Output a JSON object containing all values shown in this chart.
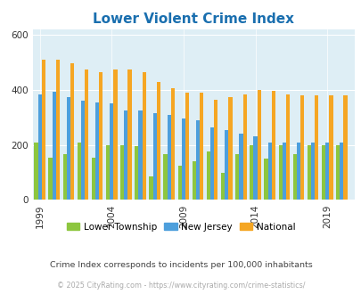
{
  "title": "Lower Violent Crime Index",
  "title_color": "#1a6faf",
  "years": [
    1999,
    2000,
    2001,
    2002,
    2003,
    2004,
    2005,
    2006,
    2007,
    2008,
    2009,
    2010,
    2011,
    2012,
    2013,
    2014,
    2015,
    2016,
    2017,
    2018,
    2019,
    2020
  ],
  "lt": [
    210,
    155,
    165,
    210,
    155,
    200,
    200,
    195,
    85,
    165,
    125,
    140,
    175,
    100,
    165,
    200,
    150,
    200,
    165,
    200,
    200,
    200
  ],
  "nj": [
    385,
    393,
    375,
    360,
    355,
    350,
    325,
    325,
    315,
    310,
    295,
    290,
    265,
    255,
    240,
    230,
    210,
    210,
    210,
    210,
    210,
    210
  ],
  "nat": [
    510,
    510,
    498,
    475,
    465,
    475,
    475,
    465,
    430,
    405,
    390,
    390,
    365,
    375,
    385,
    400,
    395,
    385,
    380,
    380,
    380,
    380
  ],
  "lower_color": "#8dc63f",
  "nj_color": "#4d9fdc",
  "national_color": "#f5a623",
  "bg_color": "#deeef5",
  "ylim": [
    0,
    620
  ],
  "yticks": [
    0,
    200,
    400,
    600
  ],
  "xtick_years": [
    1999,
    2004,
    2009,
    2014,
    2019
  ],
  "legend_labels": [
    "Lower Township",
    "New Jersey",
    "National"
  ],
  "note": "Crime Index corresponds to incidents per 100,000 inhabitants",
  "note_color": "#444444",
  "copyright": "© 2025 CityRating.com - https://www.cityrating.com/crime-statistics/",
  "copyright_color": "#aaaaaa",
  "copyright_link_color": "#4d9fdc"
}
